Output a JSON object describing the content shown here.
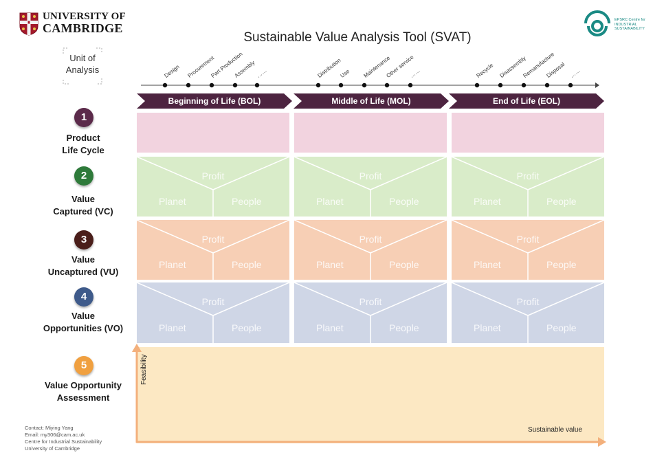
{
  "header": {
    "university_line1": "UNIVERSITY OF",
    "university_line2": "CAMBRIDGE",
    "title": "Sustainable Value Analysis Tool (SVAT)",
    "cis_logo_text": [
      "EPSRC Centre for",
      "INDUSTRIAL",
      "SUSTAINABILITY"
    ]
  },
  "unit_of_analysis": [
    "Unit of",
    "Analysis"
  ],
  "timeline": {
    "stages": [
      {
        "label": "Design"
      },
      {
        "label": "Procurement"
      },
      {
        "label": "Part Production"
      },
      {
        "label": "Assembly"
      },
      {
        "label": "……"
      },
      {
        "label": "Distribution"
      },
      {
        "label": "Use"
      },
      {
        "label": "Maintenance"
      },
      {
        "label": "Other service"
      },
      {
        "label": "……"
      },
      {
        "label": "Recycle"
      },
      {
        "label": "Disassembly"
      },
      {
        "label": "Remanufacture"
      },
      {
        "label": "Disposal"
      },
      {
        "label": "……"
      }
    ]
  },
  "phases": [
    "Beginning of Life (BOL)",
    "Middle of Life (MOL)",
    "End of Life (EOL)"
  ],
  "rows": [
    {
      "number": "1",
      "label_line1": "Product",
      "label_line2": "Life Cycle",
      "color": "#5b2a4a"
    },
    {
      "number": "2",
      "label_line1": "Value",
      "label_line2": "Captured (VC)",
      "color": "#2e7a3a"
    },
    {
      "number": "3",
      "label_line1": "Value",
      "label_line2": "Uncaptured (VU)",
      "color": "#4a1e1a"
    },
    {
      "number": "4",
      "label_line1": "Value",
      "label_line2": "Opportunities (VO)",
      "color": "#3e5a8a"
    },
    {
      "number": "5",
      "label_line1": "Value Opportunity",
      "label_line2": "Assessment",
      "color": "#f0a040"
    }
  ],
  "triangle_labels": {
    "profit": "Profit",
    "planet": "Planet",
    "people": "People"
  },
  "assessment": {
    "y_axis": "Feasibility",
    "x_axis": "Sustainable value"
  },
  "contact": [
    "Contact: Miying Yang",
    "Email: my306@cam.ac.uk",
    "Centre for Industrial Sustainability",
    "University of Cambridge"
  ],
  "colors": {
    "phase_arrow": "#4d2440",
    "life_cycle": "#f2d3df",
    "value_captured": "#d9ecc9",
    "value_uncaptured": "#f7cfb5",
    "value_opportunities": "#cfd6e6",
    "assessment": "#fce8c3",
    "axis": "#f3b07c"
  }
}
